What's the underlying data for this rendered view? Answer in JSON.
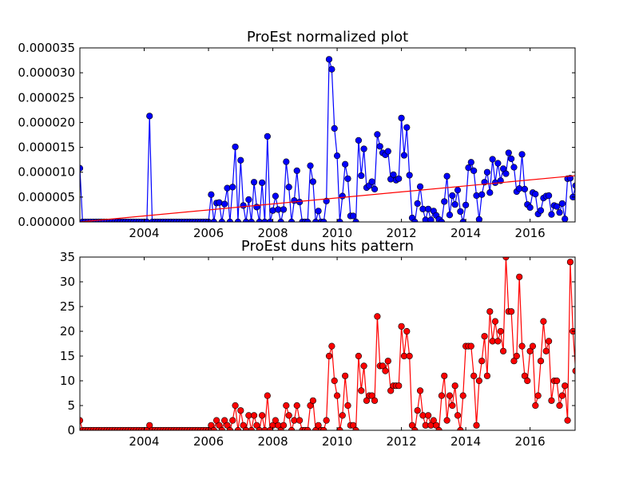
{
  "chart_data": [
    {
      "type": "line",
      "title": "ProEst normalized plot",
      "xlabel": "",
      "ylabel": "",
      "xlim": [
        2002.0,
        2017.4
      ],
      "ylim": [
        0,
        3.5e-05
      ],
      "x_ticks": [
        2004,
        2006,
        2008,
        2010,
        2012,
        2014,
        2016
      ],
      "x_tick_labels": [
        "2004",
        "2006",
        "2008",
        "2010",
        "2012",
        "2014",
        "2016"
      ],
      "y_ticks": [
        0,
        5e-06,
        1e-05,
        1.5e-05,
        2e-05,
        2.5e-05,
        3e-05,
        3.5e-05
      ],
      "y_tick_labels": [
        "0.000000",
        "0.000005",
        "0.000010",
        "0.000015",
        "0.000020",
        "0.000025",
        "0.000030",
        "0.000035"
      ],
      "grid": false,
      "series": [
        {
          "color": "#0000ff",
          "marker": "circle",
          "x_start": 2002.0,
          "x_step": 0.08333,
          "values": [
            1.08e-05,
            0,
            0,
            0,
            0,
            0,
            0,
            0,
            0,
            0,
            0,
            0,
            0,
            0,
            0,
            0,
            0,
            0,
            0,
            0,
            0,
            0,
            0,
            0,
            0,
            0,
            2.13e-05,
            0,
            0,
            0,
            0,
            0,
            0,
            0,
            0,
            0,
            0,
            0,
            0,
            0,
            0,
            0,
            0,
            0,
            0,
            0,
            0,
            0,
            0,
            5.5e-06,
            0,
            3.8e-06,
            3.9e-06,
            0,
            3.6e-06,
            6.8e-06,
            0,
            7e-06,
            1.51e-05,
            0,
            1.24e-05,
            3.3e-06,
            0,
            4.5e-06,
            0,
            8e-06,
            3e-06,
            0,
            7.9e-06,
            0,
            1.72e-05,
            0,
            2.3e-06,
            5.2e-06,
            2.5e-06,
            0,
            2.5e-06,
            1.21e-05,
            7e-06,
            0,
            4.3e-06,
            1.03e-05,
            4e-06,
            0,
            0,
            0,
            1.13e-05,
            8.1e-06,
            0,
            2.2e-06,
            0,
            0,
            4.2e-06,
            3.27e-05,
            3.07e-05,
            1.88e-05,
            1.33e-05,
            0,
            5.2e-06,
            1.16e-05,
            8.7e-06,
            1.2e-06,
            1.2e-06,
            0,
            1.64e-05,
            9.3e-06,
            1.47e-05,
            6.9e-06,
            7.3e-06,
            8.1e-06,
            6.6e-06,
            1.76e-05,
            1.52e-05,
            1.39e-05,
            1.35e-05,
            1.42e-05,
            8.6e-06,
            9.5e-06,
            8.4e-06,
            8.7e-06,
            2.09e-05,
            1.34e-05,
            1.9e-05,
            9.4e-06,
            8e-07,
            0,
            3.7e-06,
            7.1e-06,
            2.6e-06,
            4e-07,
            2.6e-06,
            4e-07,
            2.2e-06,
            1.3e-06,
            5e-07,
            0,
            4.1e-06,
            9.2e-06,
            1.4e-06,
            5.3e-06,
            3.5e-06,
            6.4e-06,
            2.1e-06,
            0,
            3.4e-06,
            1.09e-05,
            1.2e-05,
            1.03e-05,
            5.3e-06,
            5e-07,
            5.5e-06,
            8e-06,
            1e-05,
            5.9e-06,
            1.26e-05,
            7.9e-06,
            1.18e-05,
            8.3e-06,
            1.07e-05,
            9.7e-06,
            1.39e-05,
            1.27e-05,
            1.1e-05,
            6.1e-06,
            6.7e-06,
            1.36e-05,
            6.6e-06,
            3.5e-06,
            2.9e-06,
            5.9e-06,
            5.6e-06,
            1.6e-06,
            2.3e-06,
            4.8e-06,
            5.2e-06,
            5.3e-06,
            1.5e-06,
            3.3e-06,
            3.1e-06,
            1.9e-06,
            3.7e-06,
            6e-07,
            8.7e-06,
            8.8e-06,
            5e-06,
            7.3e-06
          ]
        },
        {
          "color": "#ff0000",
          "marker": "none",
          "x": [
            2002.0,
            2017.4
          ],
          "values": [
            0,
            9.3e-06
          ]
        }
      ]
    },
    {
      "type": "line",
      "title": "ProEst duns hits pattern",
      "xlabel": "",
      "ylabel": "",
      "xlim": [
        2002.0,
        2017.4
      ],
      "ylim": [
        0,
        35
      ],
      "x_ticks": [
        2004,
        2006,
        2008,
        2010,
        2012,
        2014,
        2016
      ],
      "x_tick_labels": [
        "2004",
        "2006",
        "2008",
        "2010",
        "2012",
        "2014",
        "2016"
      ],
      "y_ticks": [
        0,
        5,
        10,
        15,
        20,
        25,
        30,
        35
      ],
      "y_tick_labels": [
        "0",
        "5",
        "10",
        "15",
        "20",
        "25",
        "30",
        "35"
      ],
      "grid": false,
      "series": [
        {
          "color": "#ff0000",
          "marker_color": "#ff0000",
          "marker": "circle",
          "x_start": 2002.0,
          "x_step": 0.08333,
          "values": [
            2,
            0,
            0,
            0,
            0,
            0,
            0,
            0,
            0,
            0,
            0,
            0,
            0,
            0,
            0,
            0,
            0,
            0,
            0,
            0,
            0,
            0,
            0,
            0,
            0,
            0,
            1,
            0,
            0,
            0,
            0,
            0,
            0,
            0,
            0,
            0,
            0,
            0,
            0,
            0,
            0,
            0,
            0,
            0,
            0,
            0,
            0,
            0,
            0,
            1,
            0,
            2,
            1,
            0,
            2,
            1,
            0,
            2,
            5,
            0,
            4,
            1,
            0,
            3,
            0,
            3,
            1,
            0,
            3,
            0,
            7,
            0,
            1,
            2,
            1,
            0,
            1,
            5,
            3,
            0,
            2,
            5,
            2,
            0,
            0,
            0,
            5,
            6,
            0,
            1,
            0,
            0,
            2,
            15,
            17,
            10,
            7,
            0,
            3,
            11,
            5,
            1,
            1,
            0,
            15,
            8,
            13,
            6,
            7,
            7,
            6,
            23,
            13,
            13,
            12,
            14,
            8,
            9,
            9,
            9,
            21,
            15,
            20,
            15,
            1,
            0,
            4,
            8,
            3,
            1,
            3,
            1,
            2,
            1,
            0,
            7,
            11,
            2,
            7,
            5,
            9,
            3,
            0,
            7,
            17,
            17,
            17,
            11,
            1,
            10,
            14,
            19,
            11,
            24,
            18,
            22,
            18,
            20,
            16,
            35,
            24,
            24,
            14,
            15,
            31,
            17,
            11,
            10,
            16,
            17,
            5,
            7,
            14,
            22,
            16,
            18,
            6,
            10,
            10,
            5,
            7,
            9,
            2,
            34,
            20,
            12,
            9
          ]
        }
      ]
    }
  ]
}
